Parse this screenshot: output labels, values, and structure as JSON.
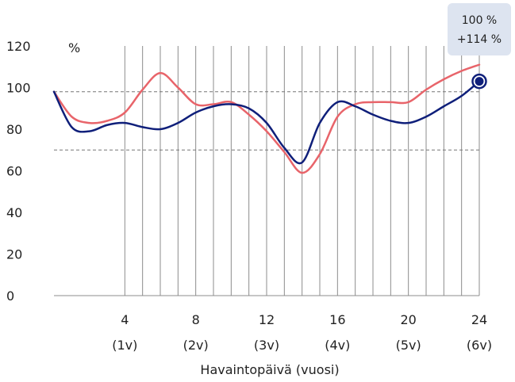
{
  "chart_data": {
    "type": "line",
    "xlabel": "Havaintopäivä (vuosi)",
    "ylabel": "%",
    "xlim": [
      0,
      24
    ],
    "ylim": [
      0,
      120
    ],
    "y_ticks": [
      "0",
      "20",
      "40",
      "60",
      "80",
      "100",
      "120"
    ],
    "x_ticks": [
      {
        "value": 4,
        "label": "4",
        "sublabel": "(1v)"
      },
      {
        "value": 8,
        "label": "8",
        "sublabel": "(2v)"
      },
      {
        "value": 12,
        "label": "12",
        "sublabel": "(3v)"
      },
      {
        "value": 16,
        "label": "16",
        "sublabel": "(4v)"
      },
      {
        "value": 20,
        "label": "20",
        "sublabel": "(5v)"
      },
      {
        "value": 24,
        "label": "24",
        "sublabel": "(6v)"
      }
    ],
    "vertical_gridlines": [
      4,
      5,
      6,
      7,
      8,
      9,
      10,
      11,
      12,
      13,
      14,
      15,
      16,
      17,
      18,
      19,
      20,
      21,
      22,
      23,
      24
    ],
    "reference_lines": [
      98,
      70
    ],
    "series": [
      {
        "color": "#e8646a",
        "x": [
          0,
          1,
          2,
          3,
          4,
          5,
          6,
          7,
          8,
          9,
          10,
          11,
          12,
          13,
          14,
          15,
          16,
          17,
          18,
          19,
          20,
          21,
          22,
          23,
          24
        ],
        "y": [
          98,
          86,
          83,
          84,
          88,
          99,
          107,
          100,
          92,
          92,
          93,
          87,
          79,
          69,
          59,
          68,
          86,
          92,
          93,
          93,
          93,
          99,
          104,
          108,
          111
        ]
      },
      {
        "color": "#0f1f7a",
        "x": [
          0,
          1,
          2,
          3,
          4,
          5,
          6,
          7,
          8,
          9,
          10,
          11,
          12,
          13,
          14,
          15,
          16,
          17,
          18,
          19,
          20,
          21,
          22,
          23,
          24
        ],
        "y": [
          98,
          81,
          79,
          82,
          83,
          81,
          80,
          83,
          88,
          91,
          92,
          90,
          83,
          71,
          64,
          83,
          93,
          91,
          87,
          84,
          83,
          86,
          91,
          96,
          103
        ]
      }
    ],
    "end_marker": {
      "x": 24,
      "y": 103,
      "color": "#0f1f7a"
    },
    "callout": {
      "line1": "100 %",
      "line2": "+114 %",
      "background": "#dde4f0"
    }
  }
}
